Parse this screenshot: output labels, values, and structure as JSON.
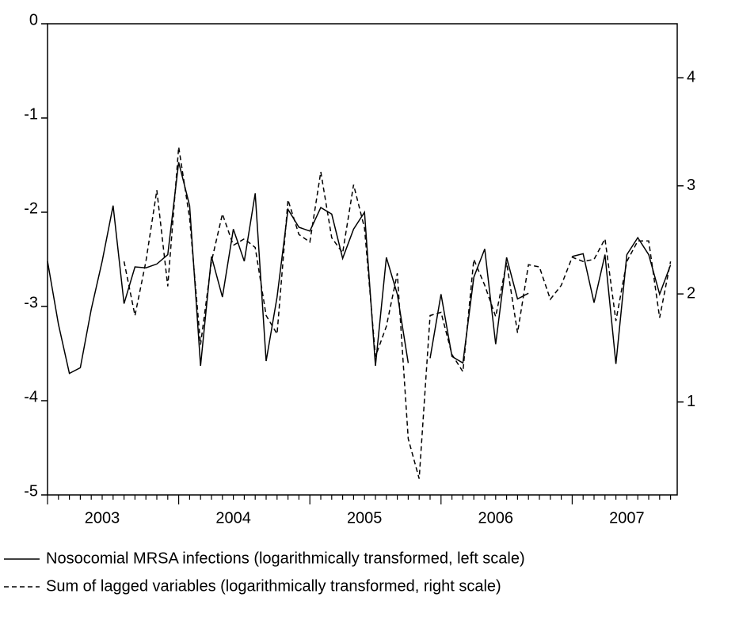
{
  "chart_data": {
    "type": "line",
    "categories": [
      null,
      null,
      null,
      null,
      null,
      "2003",
      null,
      null,
      null,
      null,
      null,
      null,
      null,
      null,
      null,
      null,
      null,
      "2004",
      null,
      null,
      null,
      null,
      null,
      null,
      null,
      null,
      null,
      null,
      null,
      "2005",
      null,
      null,
      null,
      null,
      null,
      null,
      null,
      null,
      null,
      null,
      null,
      "2006",
      null,
      null,
      null,
      null,
      null,
      null,
      null,
      null,
      null,
      null,
      null,
      "2007",
      null,
      null,
      null,
      null
    ],
    "series": [
      {
        "name": "Nosocomial MRSA infections (logarithmically transformed, left scale)",
        "color": "#000000",
        "dash": "solid",
        "values": [
          -2.52,
          -3.19,
          -3.71,
          -3.65,
          -3.03,
          -2.52,
          -1.93,
          -2.97,
          -2.58,
          -2.59,
          -2.55,
          -2.45,
          -1.47,
          -1.93,
          -3.63,
          -2.47,
          -2.9,
          -2.18,
          -2.52,
          -1.8,
          -3.58,
          -2.9,
          -1.97,
          -2.16,
          -2.2,
          -1.95,
          -2.02,
          -2.49,
          -2.18,
          -2.0,
          -3.63,
          -2.48,
          -2.87,
          -3.6,
          null,
          -3.55,
          -2.87,
          -3.53,
          -3.6,
          -2.69,
          -2.39,
          -3.4,
          -2.48,
          -2.92,
          -2.86,
          null,
          null,
          null,
          -2.47,
          -2.44,
          -2.96,
          -2.45,
          -3.61,
          -2.45,
          -2.27,
          -2.45,
          -2.87,
          -2.56
        ]
      },
      {
        "name": "Sum of lagged variables (logarithmically transformed, right scale)",
        "color": "#000000",
        "dash": "dashed",
        "axis": "y2",
        "values": [
          null,
          null,
          null,
          null,
          null,
          null,
          null,
          2.3,
          1.8,
          2.3,
          2.96,
          2.07,
          3.36,
          2.7,
          1.53,
          2.3,
          2.74,
          2.45,
          2.51,
          2.43,
          1.8,
          1.63,
          2.87,
          2.55,
          2.48,
          3.13,
          2.52,
          2.38,
          3.01,
          2.61,
          1.42,
          1.7,
          2.19,
          0.66,
          0.29,
          1.8,
          1.83,
          1.44,
          1.28,
          2.32,
          2.08,
          1.79,
          2.29,
          1.64,
          2.27,
          2.25,
          1.95,
          2.08,
          2.34,
          2.3,
          2.32,
          2.51,
          1.75,
          2.3,
          2.49,
          2.49,
          1.78,
          2.3
        ]
      }
    ],
    "ylim": [
      -5,
      0
    ],
    "yticks": [
      0,
      -1,
      -2,
      -3,
      -4,
      -5
    ],
    "y2lim": [
      0.14,
      4.5
    ],
    "y2ticks": [
      1,
      2,
      3,
      4
    ],
    "legend": "bottom",
    "grid": false
  }
}
